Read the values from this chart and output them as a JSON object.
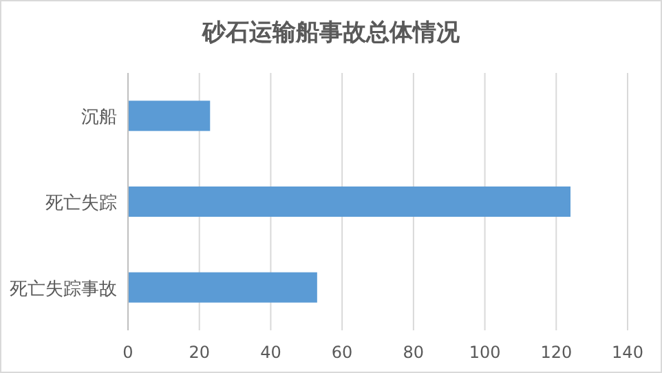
{
  "chart_data": {
    "type": "bar",
    "orientation": "horizontal",
    "title": "砂石运输船事故总体情况",
    "categories": [
      "沉船",
      "死亡失踪",
      "死亡失踪事故"
    ],
    "values": [
      23,
      124,
      53
    ],
    "color": "#5b9bd5",
    "xlim": [
      0,
      140
    ],
    "xticks": [
      0,
      20,
      40,
      60,
      80,
      100,
      120,
      140
    ],
    "grid": "x"
  }
}
